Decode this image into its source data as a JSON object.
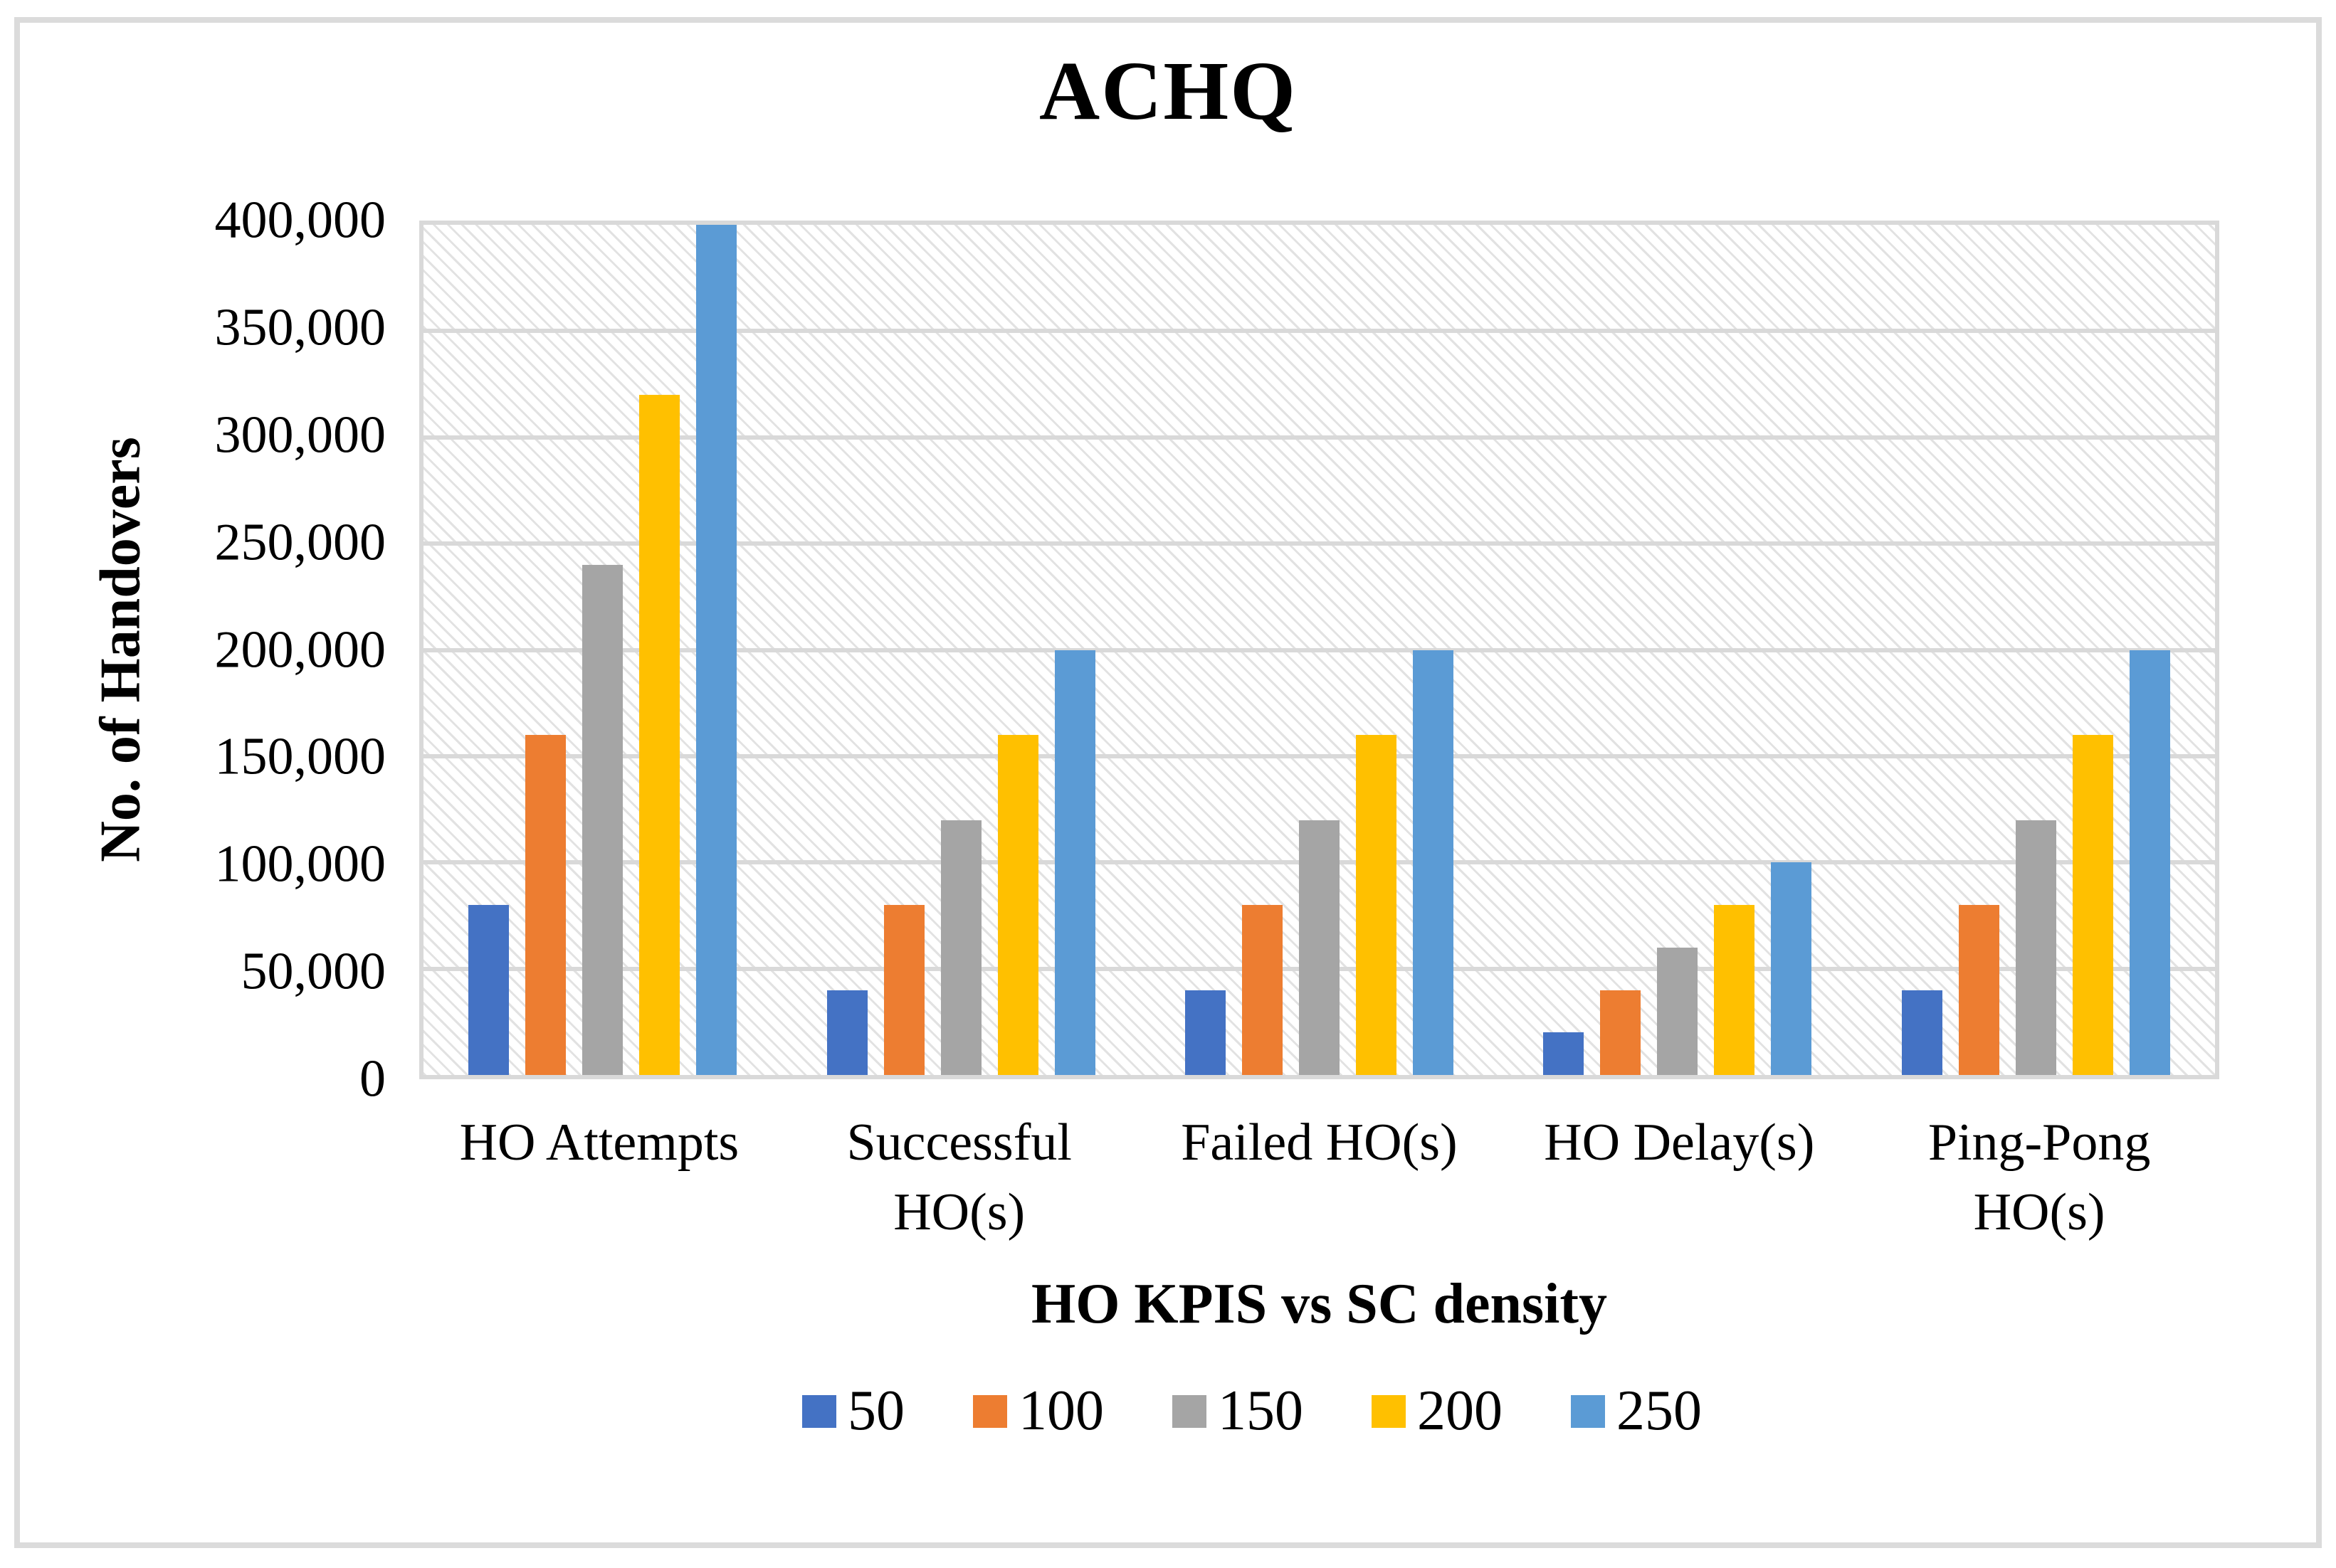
{
  "frame": {
    "border_color": "#dbdbdb"
  },
  "chart_data": {
    "type": "bar",
    "title": "ACHQ",
    "xlabel": "HO KPIS vs SC density",
    "ylabel": "No. of Handovers",
    "categories": [
      "HO Attempts",
      "Successful HO(s)",
      "Failed HO(s)",
      "HO Delay(s)",
      "Ping-Pong HO(s)"
    ],
    "category_label_lines": [
      [
        "HO Attempts"
      ],
      [
        "Successful",
        "HO(s)"
      ],
      [
        "Failed HO(s)"
      ],
      [
        "HO Delay(s)"
      ],
      [
        "Ping-Pong",
        "HO(s)"
      ]
    ],
    "series": [
      {
        "name": "50",
        "color": "#4472C4",
        "values": [
          80000,
          40000,
          40000,
          20000,
          40000
        ]
      },
      {
        "name": "100",
        "color": "#ED7D31",
        "values": [
          160000,
          80000,
          80000,
          40000,
          80000
        ]
      },
      {
        "name": "150",
        "color": "#A5A5A5",
        "values": [
          240000,
          120000,
          120000,
          60000,
          120000
        ]
      },
      {
        "name": "200",
        "color": "#FFC000",
        "values": [
          320000,
          160000,
          160000,
          80000,
          160000
        ]
      },
      {
        "name": "250",
        "color": "#5B9BD5",
        "values": [
          400000,
          200000,
          200000,
          100000,
          200000
        ]
      }
    ],
    "y_axis": {
      "min": 0,
      "max": 400000,
      "tick_step": 50000,
      "tick_labels": [
        "400,000",
        "350,000",
        "300,000",
        "250,000",
        "200,000",
        "150,000",
        "100,000",
        "50,000",
        "0"
      ]
    },
    "grid": true,
    "gridline_color": "#d9d9d9",
    "plot_background": "white with light-gray diagonal hatch pattern",
    "legend_position": "bottom"
  }
}
